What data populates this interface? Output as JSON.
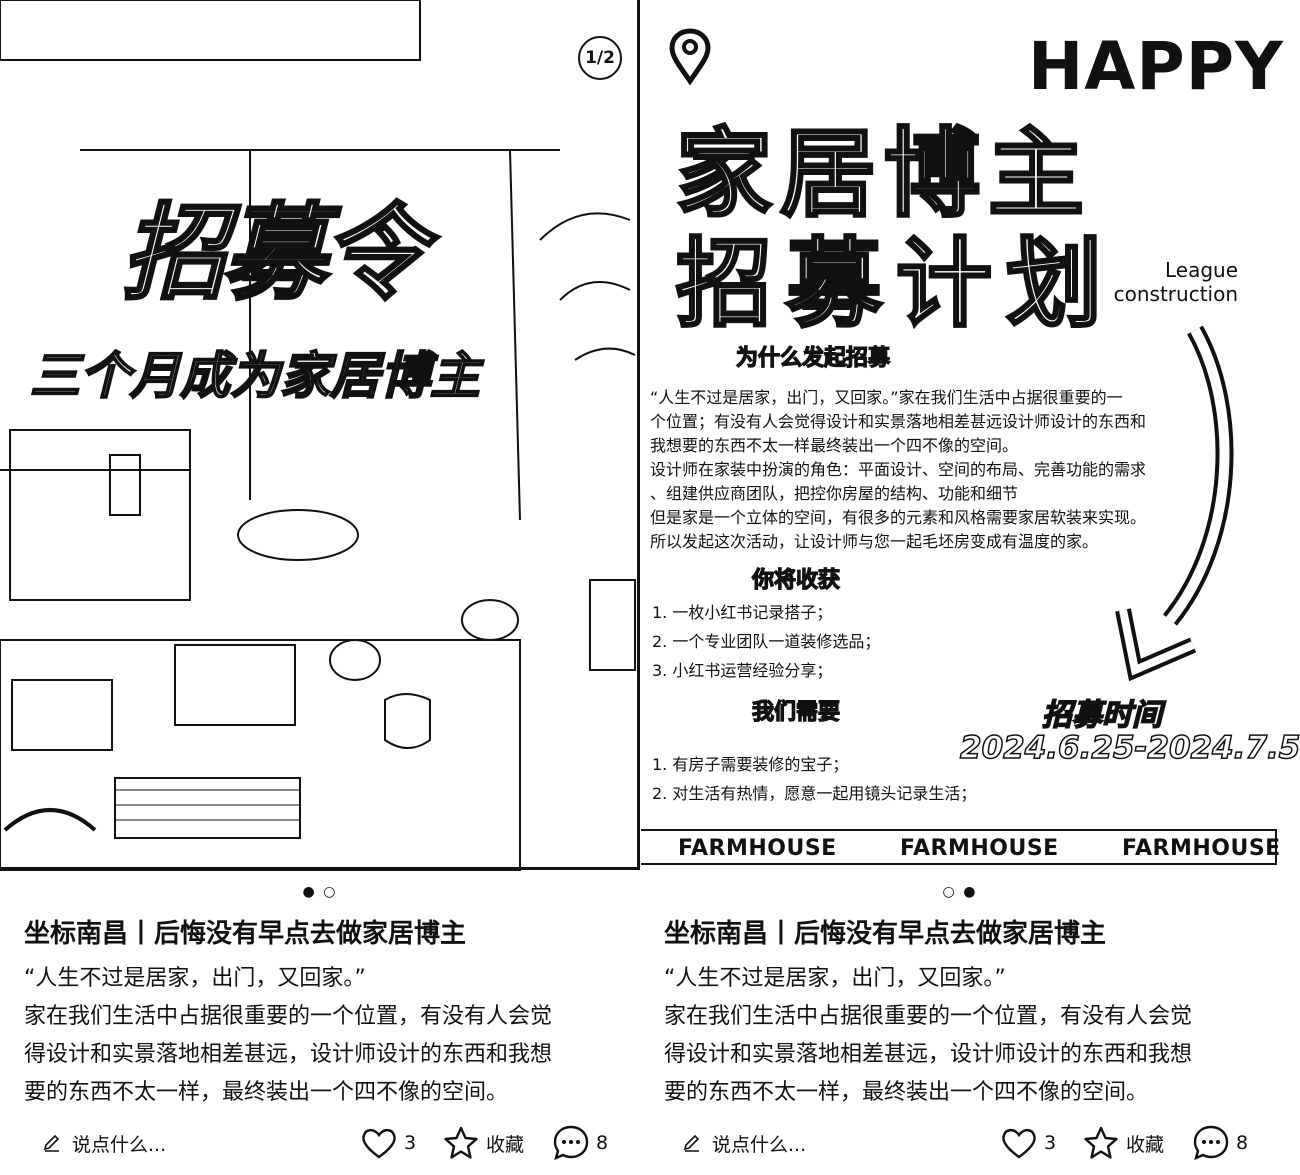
{
  "posts": [
    {
      "media": {
        "page_indicator": "1/2",
        "hero_title": "招募令",
        "hero_subtitle": "三个月成为家居博主",
        "indicator_dots": "● ○",
        "icon": "photo-collage"
      },
      "title": "坐标南昌丨后悔没有早点去做家居博主",
      "body_lines": [
        "“人生不过是居家，出门，又回家。”",
        "家在我们生活中占据很重要的一个位置，有没有人会觉",
        "得设计和实景落地相差甚远，设计师设计的东西和我想",
        "要的东西不太一样，最终装出一个四不像的空间。"
      ],
      "actions": {
        "comment_placeholder": "说点什么...",
        "likes": "3",
        "favorite_label": "收藏",
        "comments": "8"
      }
    },
    {
      "poster": {
        "happy": "HAPPY",
        "headline1": "家居博主",
        "headline2": "招募计划",
        "league_line1": "League",
        "league_line2": "construction",
        "why_heading": "为什么发起招募",
        "why_lines": [
          "“人生不过是居家，出门，又回家。”家在我们生活中占据很重要的一",
          "个位置；有没有人会觉得设计和实景落地相差甚远设计师设计的东西和",
          "我想要的东西不太一样最终装出一个四不像的空间。",
          "设计师在家装中扮演的角色：平面设计、空间的布局、完善功能的需求",
          "、组建供应商团队，把控你房屋的结构、功能和细节",
          "但是家是一个立体的空间，有很多的元素和风格需要家居软装来实现。",
          "所以发起这次活动，让设计师与您一起毛坯房变成有温度的家。"
        ],
        "gain_heading": "你将收获",
        "gain_items": [
          "1. 一枚小红书记录搭子；",
          "2. 一个专业团队一道装修选品；",
          "3. 小红书运营经验分享；"
        ],
        "need_heading": "我们需要",
        "need_items": [
          "1. 有房子需要装修的宝子；",
          "2. 对生活有热情，愿意一起用镜头记录生活；"
        ],
        "time_heading": "招募时间",
        "time_range": "2024.6.25-2024.7.5",
        "farm_labels": [
          "FARMHOUSE",
          "FARMHOUSE",
          "FARMHOUSE"
        ],
        "indicator_dots": "○ ●"
      },
      "title": "坐标南昌丨后悔没有早点去做家居博主",
      "body_lines": [
        "“人生不过是居家，出门，又回家。”",
        "家在我们生活中占据很重要的一个位置，有没有人会觉",
        "得设计和实景落地相差甚远，设计师设计的东西和我想",
        "要的东西不太一样，最终装出一个四不像的空间。"
      ],
      "actions": {
        "comment_placeholder": "说点什么...",
        "likes": "3",
        "favorite_label": "收藏",
        "comments": "8"
      }
    }
  ]
}
